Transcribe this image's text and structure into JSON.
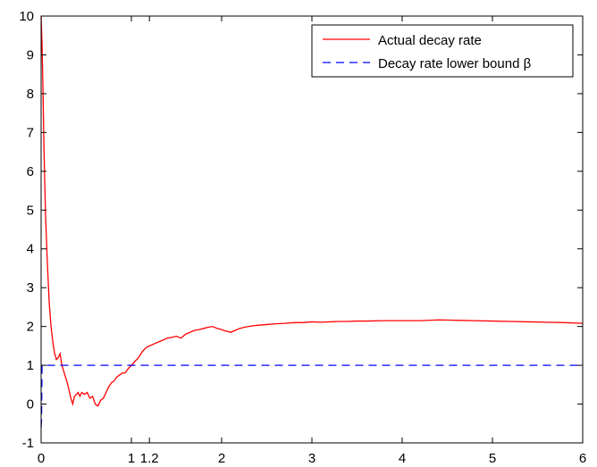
{
  "chart_data": {
    "type": "line",
    "title": "",
    "xlabel": "",
    "ylabel": "",
    "xlim": [
      0,
      6
    ],
    "ylim": [
      -1,
      10
    ],
    "xticks": [
      0,
      1,
      1.2,
      2,
      3,
      4,
      5,
      6
    ],
    "xtick_labels": [
      "0",
      "1",
      "1.2",
      "2",
      "3",
      "4",
      "5",
      "6"
    ],
    "yticks": [
      -1,
      0,
      1,
      2,
      3,
      4,
      5,
      6,
      7,
      8,
      9,
      10
    ],
    "ytick_labels": [
      "-1",
      "0",
      "1",
      "2",
      "3",
      "4",
      "5",
      "6",
      "7",
      "8",
      "9",
      "10"
    ],
    "grid": false,
    "legend_position": "top-right",
    "series": [
      {
        "name": "Actual decay rate",
        "color": "#ff0000",
        "style": "solid",
        "x": [
          0.0,
          0.01,
          0.02,
          0.03,
          0.04,
          0.05,
          0.07,
          0.09,
          0.11,
          0.13,
          0.15,
          0.17,
          0.19,
          0.21,
          0.23,
          0.25,
          0.27,
          0.29,
          0.31,
          0.33,
          0.35,
          0.37,
          0.39,
          0.41,
          0.43,
          0.45,
          0.48,
          0.51,
          0.54,
          0.57,
          0.6,
          0.63,
          0.66,
          0.69,
          0.72,
          0.75,
          0.78,
          0.81,
          0.84,
          0.87,
          0.9,
          0.93,
          0.96,
          1.0,
          1.04,
          1.08,
          1.12,
          1.16,
          1.2,
          1.25,
          1.3,
          1.35,
          1.4,
          1.45,
          1.5,
          1.55,
          1.6,
          1.65,
          1.7,
          1.75,
          1.8,
          1.85,
          1.9,
          1.95,
          2.0,
          2.05,
          2.1,
          2.15,
          2.2,
          2.25,
          2.3,
          2.35,
          2.4,
          2.5,
          2.6,
          2.7,
          2.8,
          2.9,
          3.0,
          3.1,
          3.2,
          3.3,
          3.4,
          3.5,
          3.6,
          3.8,
          4.0,
          4.2,
          4.4,
          4.6,
          4.8,
          5.0,
          5.2,
          5.4,
          5.6,
          5.8,
          6.0
        ],
        "y": [
          10.0,
          9.3,
          8.2,
          6.8,
          5.7,
          4.8,
          3.6,
          2.6,
          2.0,
          1.6,
          1.3,
          1.15,
          1.2,
          1.3,
          1.0,
          0.85,
          0.7,
          0.55,
          0.35,
          0.15,
          0.0,
          0.2,
          0.25,
          0.3,
          0.2,
          0.3,
          0.25,
          0.3,
          0.15,
          0.2,
          0.0,
          -0.05,
          0.1,
          0.15,
          0.3,
          0.45,
          0.55,
          0.6,
          0.7,
          0.75,
          0.8,
          0.8,
          0.9,
          1.0,
          1.1,
          1.2,
          1.35,
          1.45,
          1.5,
          1.55,
          1.6,
          1.65,
          1.7,
          1.72,
          1.75,
          1.7,
          1.8,
          1.85,
          1.9,
          1.92,
          1.95,
          1.98,
          2.0,
          1.95,
          1.92,
          1.88,
          1.85,
          1.9,
          1.95,
          1.98,
          2.0,
          2.02,
          2.03,
          2.05,
          2.07,
          2.08,
          2.1,
          2.1,
          2.12,
          2.11,
          2.12,
          2.13,
          2.13,
          2.14,
          2.14,
          2.15,
          2.15,
          2.15,
          2.17,
          2.16,
          2.15,
          2.14,
          2.13,
          2.12,
          2.11,
          2.1,
          2.08
        ]
      },
      {
        "name": "Decay rate lower bound β",
        "color": "#0000ff",
        "style": "dashed",
        "x": [
          0.0,
          0.005,
          0.01,
          6.0
        ],
        "y": [
          -0.6,
          -0.4,
          1.0,
          1.0
        ]
      }
    ]
  }
}
